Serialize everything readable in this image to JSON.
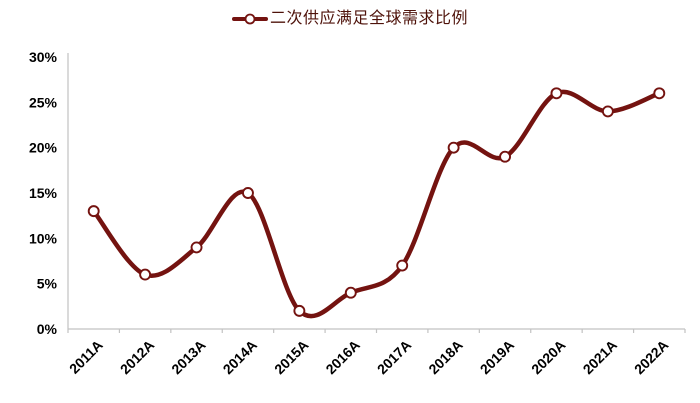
{
  "legend": {
    "label": "二次供应满足全球需求比例"
  },
  "chart_data": {
    "type": "line",
    "title": "二次供应满足全球需求比例",
    "categories": [
      "2011A",
      "2012A",
      "2013A",
      "2014A",
      "2015A",
      "2016A",
      "2017A",
      "2018A",
      "2019A",
      "2020A",
      "2021A",
      "2022A"
    ],
    "series": [
      {
        "name": "二次供应满足全球需求比例",
        "values": [
          13,
          6,
          9,
          15,
          2,
          4,
          7,
          20,
          19,
          26,
          24,
          26
        ]
      }
    ],
    "unit": "%",
    "xlabel": "",
    "ylabel": "",
    "ylim": [
      0,
      30
    ],
    "y_ticks": [
      {
        "label": "0%",
        "value": 0
      },
      {
        "label": "5%",
        "value": 5
      },
      {
        "label": "10%",
        "value": 10
      },
      {
        "label": "15%",
        "value": 15
      },
      {
        "label": "20%",
        "value": 20
      },
      {
        "label": "25%",
        "value": 25
      },
      {
        "label": "30%",
        "value": 30
      }
    ],
    "grid": false,
    "smooth": true,
    "marker": "open-circle",
    "legend_position": "top-center",
    "x_label_rotation_deg": 45,
    "colors": {
      "line": "#741310",
      "marker_fill": "#ffffff",
      "axis": "#c2c2c2",
      "tick_label": "#000000",
      "legend_text": "#4e120a",
      "background": "#ffffff"
    }
  }
}
